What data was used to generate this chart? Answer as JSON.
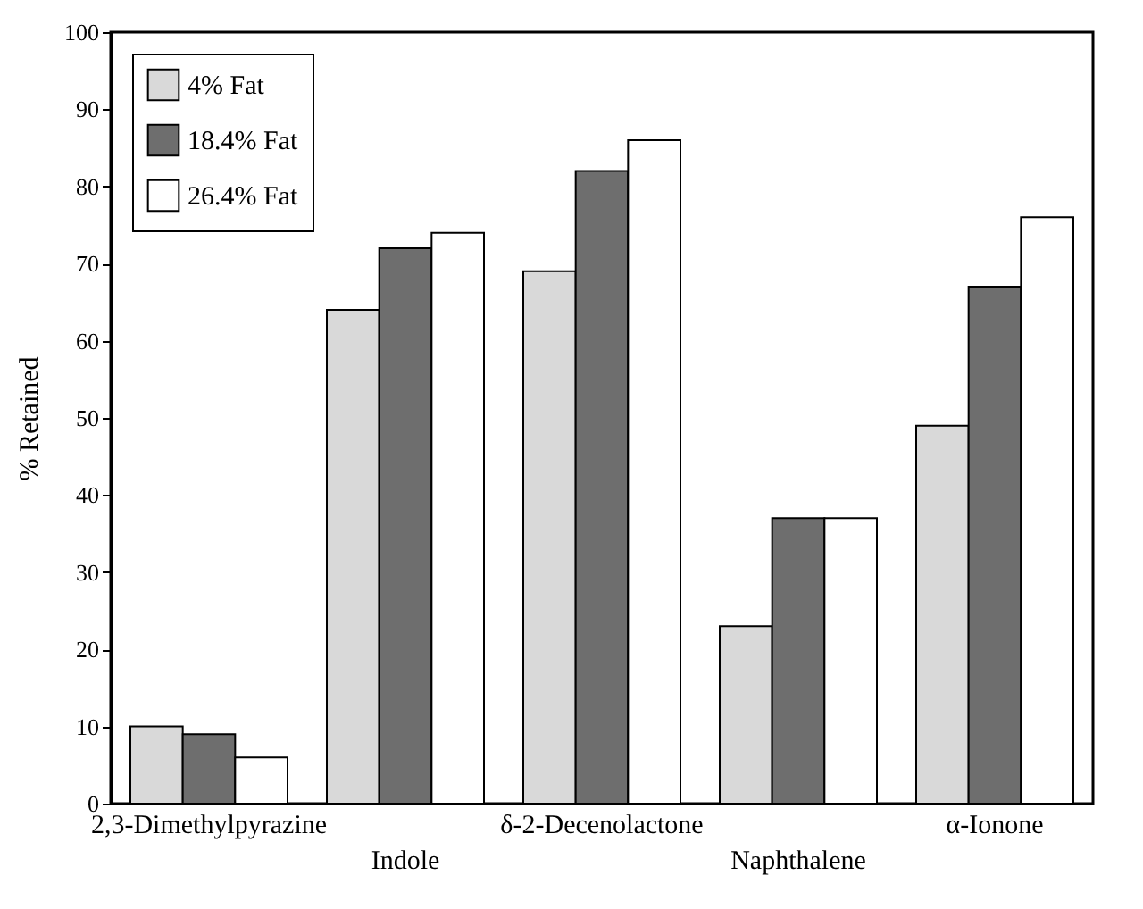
{
  "chart_data": {
    "type": "bar",
    "ylabel": "% Retained",
    "categories": [
      "2,3-Dimethylpyrazine",
      "Indole",
      "δ-2-Decenolactone",
      "Naphthalene",
      "α-Ionone"
    ],
    "series": [
      {
        "name": "4% Fat",
        "color": "#d9d9d9",
        "values": [
          10,
          64,
          69,
          23,
          49
        ]
      },
      {
        "name": "18.4% Fat",
        "color": "#6e6e6e",
        "values": [
          9,
          72,
          82,
          37,
          67
        ]
      },
      {
        "name": "26.4% Fat",
        "color": "#ffffff",
        "values": [
          6,
          74,
          86,
          37,
          76
        ]
      }
    ],
    "ylim": [
      0,
      100
    ],
    "yticks": [
      0,
      10,
      20,
      30,
      40,
      50,
      60,
      70,
      80,
      90,
      100
    ],
    "grid": false,
    "legend": "top left"
  }
}
